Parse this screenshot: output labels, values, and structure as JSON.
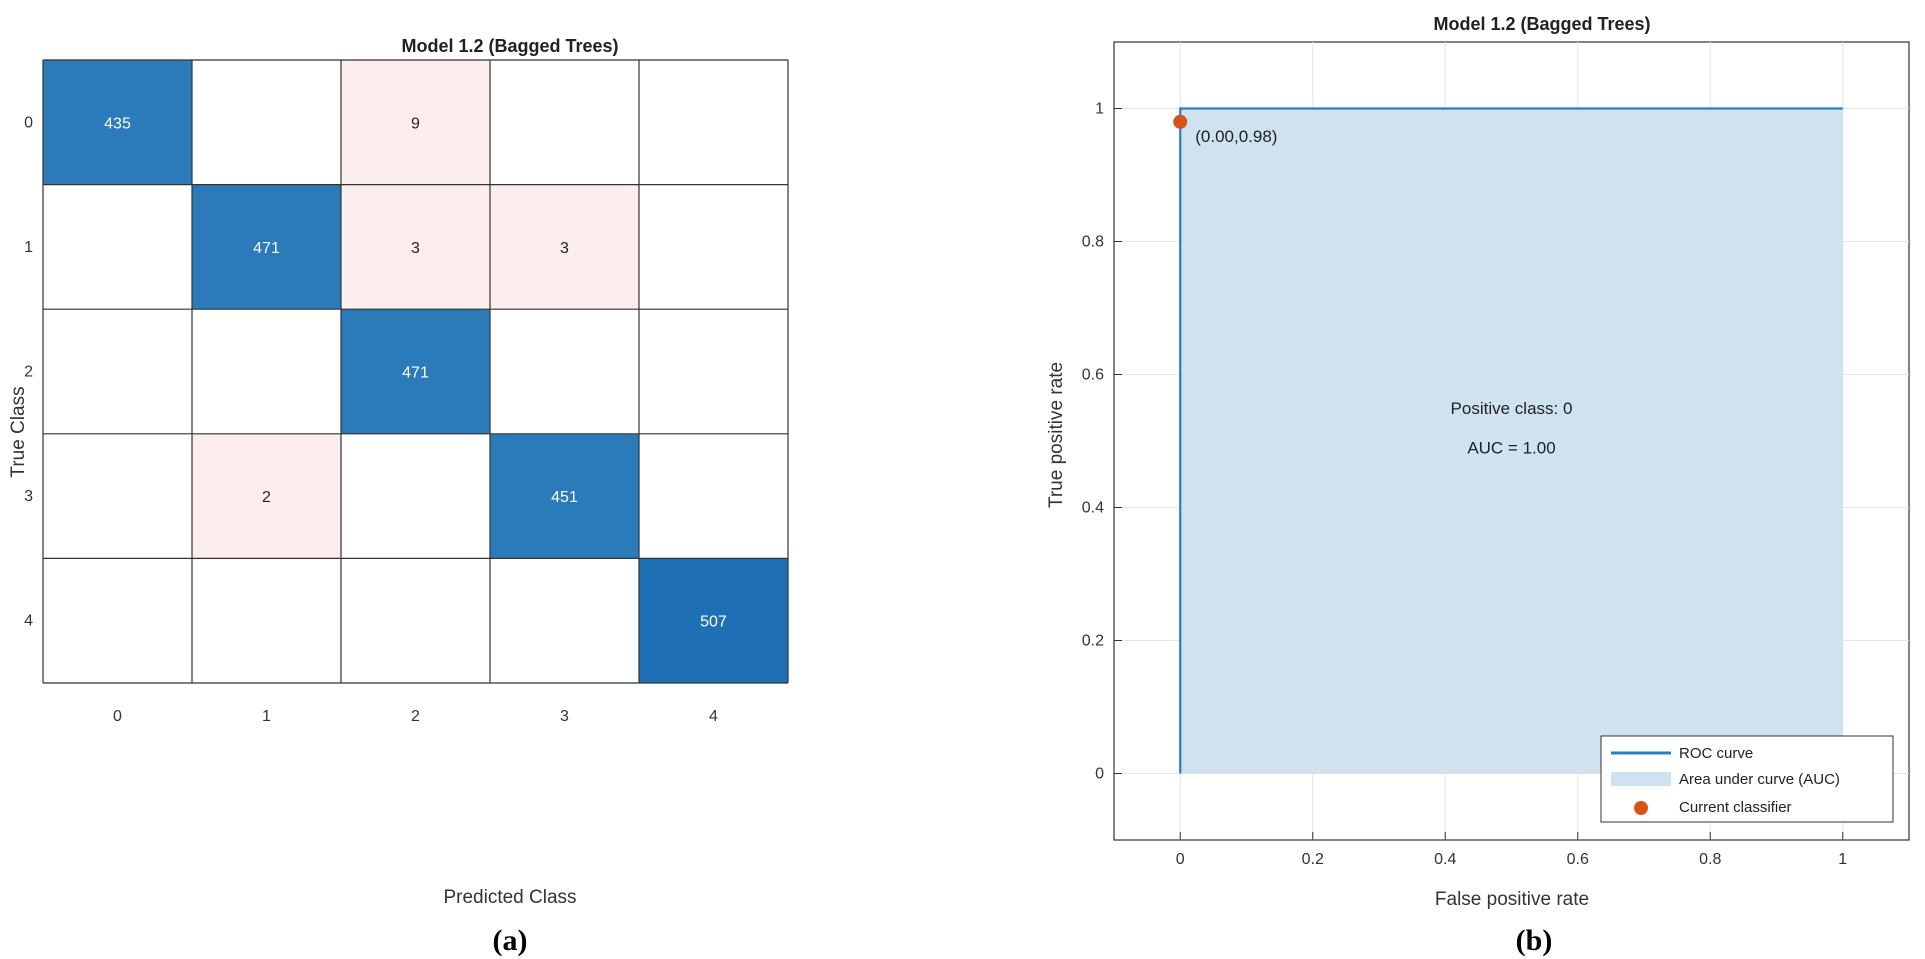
{
  "chart_data": [
    {
      "type": "heatmap",
      "title": "Model 1.2 (Bagged Trees)",
      "xlabel": "Predicted Class",
      "ylabel": "True Class",
      "classes": [
        "0",
        "1",
        "2",
        "3",
        "4"
      ],
      "matrix": [
        [
          435,
          null,
          9,
          null,
          null
        ],
        [
          null,
          471,
          3,
          3,
          null
        ],
        [
          null,
          null,
          471,
          null,
          null
        ],
        [
          null,
          2,
          null,
          451,
          null
        ],
        [
          null,
          null,
          null,
          null,
          507
        ]
      ],
      "colors": {
        "diagonal": "#2b7bba",
        "diagonal_strong": "#1f6fb4",
        "offdiagonal": "#fbeeec",
        "grid": "#333333"
      },
      "panel_label": "(a)"
    },
    {
      "type": "line",
      "title": "Model 1.2 (Bagged Trees)",
      "xlabel": "False positive rate",
      "ylabel": "True positive rate",
      "xlim": [
        -0.1,
        1.1
      ],
      "ylim": [
        -0.1,
        1.1
      ],
      "xticks": [
        0,
        0.2,
        0.4,
        0.6,
        0.8,
        1
      ],
      "yticks": [
        0,
        0.2,
        0.4,
        0.6,
        0.8,
        1
      ],
      "xtick_labels": [
        "0",
        "0.2",
        "0.4",
        "0.6",
        "0.8",
        "1"
      ],
      "ytick_labels": [
        "0",
        "0.2",
        "0.4",
        "0.6",
        "0.8",
        "1"
      ],
      "grid": true,
      "series": [
        {
          "name": "ROC curve",
          "x": [
            0,
            0,
            1
          ],
          "y": [
            0,
            1,
            1
          ],
          "color": "#2a7fbd"
        }
      ],
      "auc_area": {
        "name": "Area under curve (AUC)",
        "color": "#cfe2f0"
      },
      "current_classifier": {
        "name": "Current classifier",
        "x": 0.0,
        "y": 0.98,
        "label": "(0.00,0.98)",
        "color": "#d95319"
      },
      "annotations": [
        "Positive class: 0",
        "AUC = 1.00"
      ],
      "legend_position": "bottom-right",
      "panel_label": "(b)"
    }
  ]
}
